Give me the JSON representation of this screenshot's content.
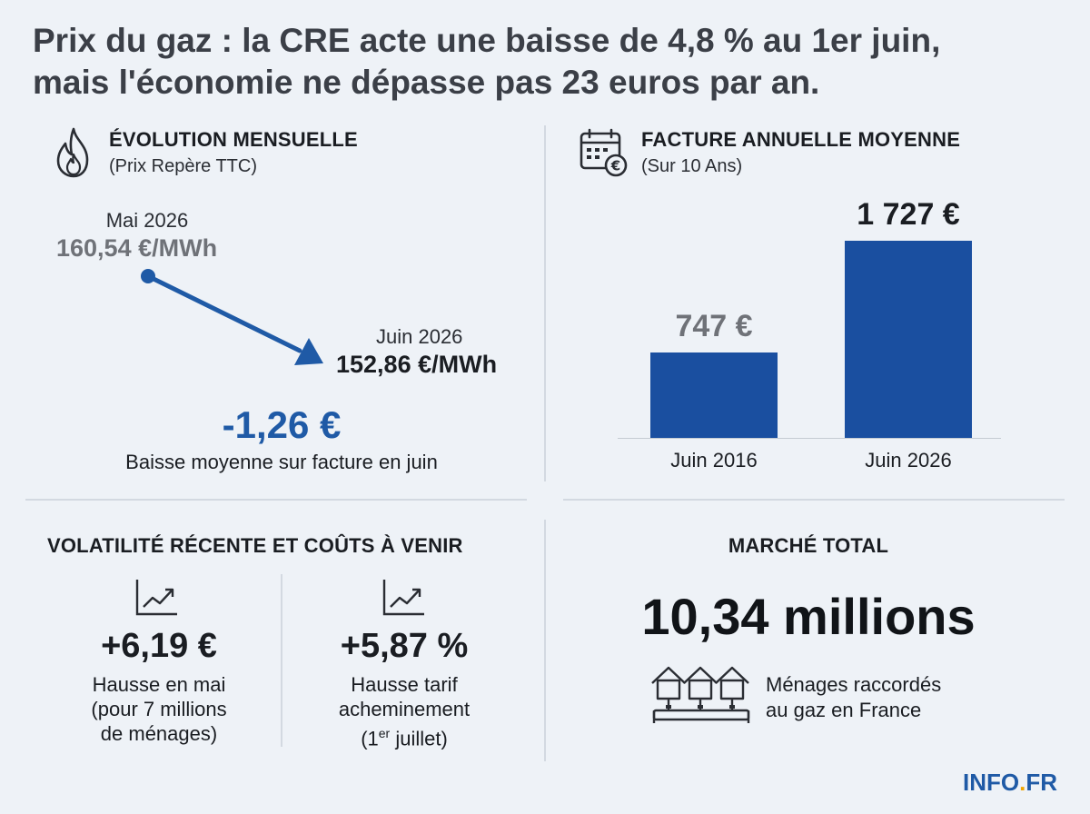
{
  "title": {
    "line1": "Prix du gaz : la CRE acte une baisse de 4,8 % au 1er juin,",
    "line2": "mais l'économie ne dépasse pas 23 euros par an."
  },
  "evolution": {
    "heading": "ÉVOLUTION MENSUELLE",
    "subheading": "(Prix Repère TTC)",
    "icon": "flame-icon",
    "start": {
      "label": "Mai 2026",
      "value": "160,54 €/MWh"
    },
    "end": {
      "label": "Juin 2026",
      "value": "152,86 €/MWh"
    },
    "delta": "-1,26 €",
    "delta_caption": "Baisse moyenne sur facture en juin"
  },
  "facture": {
    "heading": "FACTURE ANNUELLE MOYENNE",
    "subheading": "(Sur 10 Ans)",
    "icon": "calendar-euro-icon"
  },
  "chart_data": {
    "type": "bar",
    "title": "FACTURE ANNUELLE MOYENNE",
    "subtitle": "(Sur 10 Ans)",
    "categories": [
      "Juin 2016",
      "Juin 2026"
    ],
    "values": [
      747,
      1727
    ],
    "value_labels": [
      "747 €",
      "1 727 €"
    ],
    "ylim": [
      0,
      1727
    ],
    "colors": [
      "#1a4fa0",
      "#1a4fa0"
    ],
    "label_colors": [
      "#6f7278",
      "#1a1d22"
    ],
    "grid": false
  },
  "volatilite": {
    "heading": "VOLATILITÉ RÉCENTE ET COÛTS À VENIR",
    "item1": {
      "icon": "trend-up-icon",
      "value": "+6,19 €",
      "line1": "Hausse en mai",
      "line2": "(pour 7 millions",
      "line3": "de ménages)"
    },
    "item2": {
      "icon": "trend-up-icon",
      "value": "+5,87 %",
      "line1": "Hausse tarif",
      "line2": "acheminement",
      "line3_pre": "(1",
      "line3_sup": "er",
      "line3_post": " juillet)"
    }
  },
  "marche": {
    "heading": "MARCHÉ TOTAL",
    "value": "10,34 millions",
    "icon": "houses-pipeline-icon",
    "caption1": "Ménages raccordés",
    "caption2": "au gaz en France"
  },
  "brand": {
    "name": "INFO",
    "dot": ".",
    "tld": "FR"
  },
  "colors": {
    "accent": "#1f5aa6",
    "bar": "#1a4fa0",
    "background": "#eef2f7"
  }
}
